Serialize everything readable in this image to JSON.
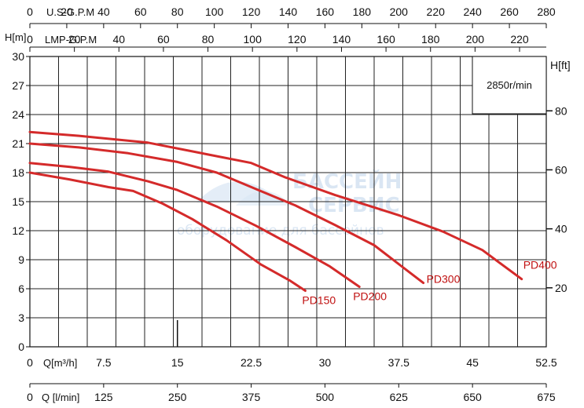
{
  "chart_data": {
    "type": "line",
    "speed_note": "2850r/min",
    "y_left": {
      "label": "H[m]",
      "ticks": [
        "0",
        "3",
        "6",
        "9",
        "12",
        "15",
        "18",
        "21",
        "24",
        "27",
        "30"
      ],
      "ylim": [
        0,
        30
      ]
    },
    "y_right": {
      "label": "H[ft]",
      "ticks": [
        "20",
        "40",
        "60",
        "80"
      ]
    },
    "x_top_usgpm": {
      "label": "U.S-G.P.M",
      "ticks": [
        "0",
        "20",
        "40",
        "60",
        "80",
        "100",
        "120",
        "140",
        "160",
        "180",
        "200",
        "220",
        "240",
        "260",
        "280"
      ]
    },
    "x_top_lmpgpm": {
      "label": "LMP-G.P.M",
      "ticks": [
        "0",
        "20",
        "40",
        "60",
        "80",
        "100",
        "120",
        "140",
        "160",
        "180",
        "200",
        "220"
      ]
    },
    "x_bottom_m3h": {
      "label": "Q[m³/h]",
      "ticks": [
        "0",
        "7.5",
        "15",
        "22.5",
        "30",
        "37.5",
        "45",
        "52.5"
      ],
      "xlim": [
        0,
        52.5
      ]
    },
    "x_bottom_lmin": {
      "label": "Q [l/min]",
      "ticks": [
        "0",
        "125",
        "250",
        "375",
        "500",
        "625",
        "650",
        "675"
      ]
    },
    "series": [
      {
        "name": "PD150",
        "x": [
          0,
          4,
          8,
          10.5,
          13.5,
          16.5,
          20,
          23.5,
          26.5,
          28
        ],
        "y": [
          18,
          17.3,
          16.5,
          16.1,
          14.8,
          13.2,
          11,
          8.5,
          6.8,
          5.8
        ]
      },
      {
        "name": "PD200",
        "x": [
          0,
          4,
          8,
          12,
          15,
          19,
          23,
          27,
          30.5,
          33.5
        ],
        "y": [
          19,
          18.6,
          18.1,
          17.1,
          16.2,
          14.5,
          12.5,
          10.3,
          8.3,
          6.2
        ]
      },
      {
        "name": "PD300",
        "x": [
          0,
          5,
          10,
          15,
          19,
          23,
          27,
          31,
          35,
          40
        ],
        "y": [
          21,
          20.6,
          20,
          19.1,
          18,
          16.3,
          14.6,
          12.6,
          10.5,
          6.6
        ]
      },
      {
        "name": "PD400",
        "x": [
          0,
          5,
          12,
          18,
          22.5,
          26,
          31,
          37.5,
          42,
          46,
          50
        ],
        "y": [
          22.2,
          21.8,
          21.1,
          19.9,
          19,
          17.5,
          15.7,
          13.6,
          11.9,
          10,
          7
        ]
      }
    ]
  },
  "watermark": {
    "line1": "БАССЕЙН",
    "line2": "СЕРВИС",
    "line3": "оборудование для бассейнов"
  },
  "colors": {
    "curve": "#d42a2a",
    "grid": "#222222"
  }
}
